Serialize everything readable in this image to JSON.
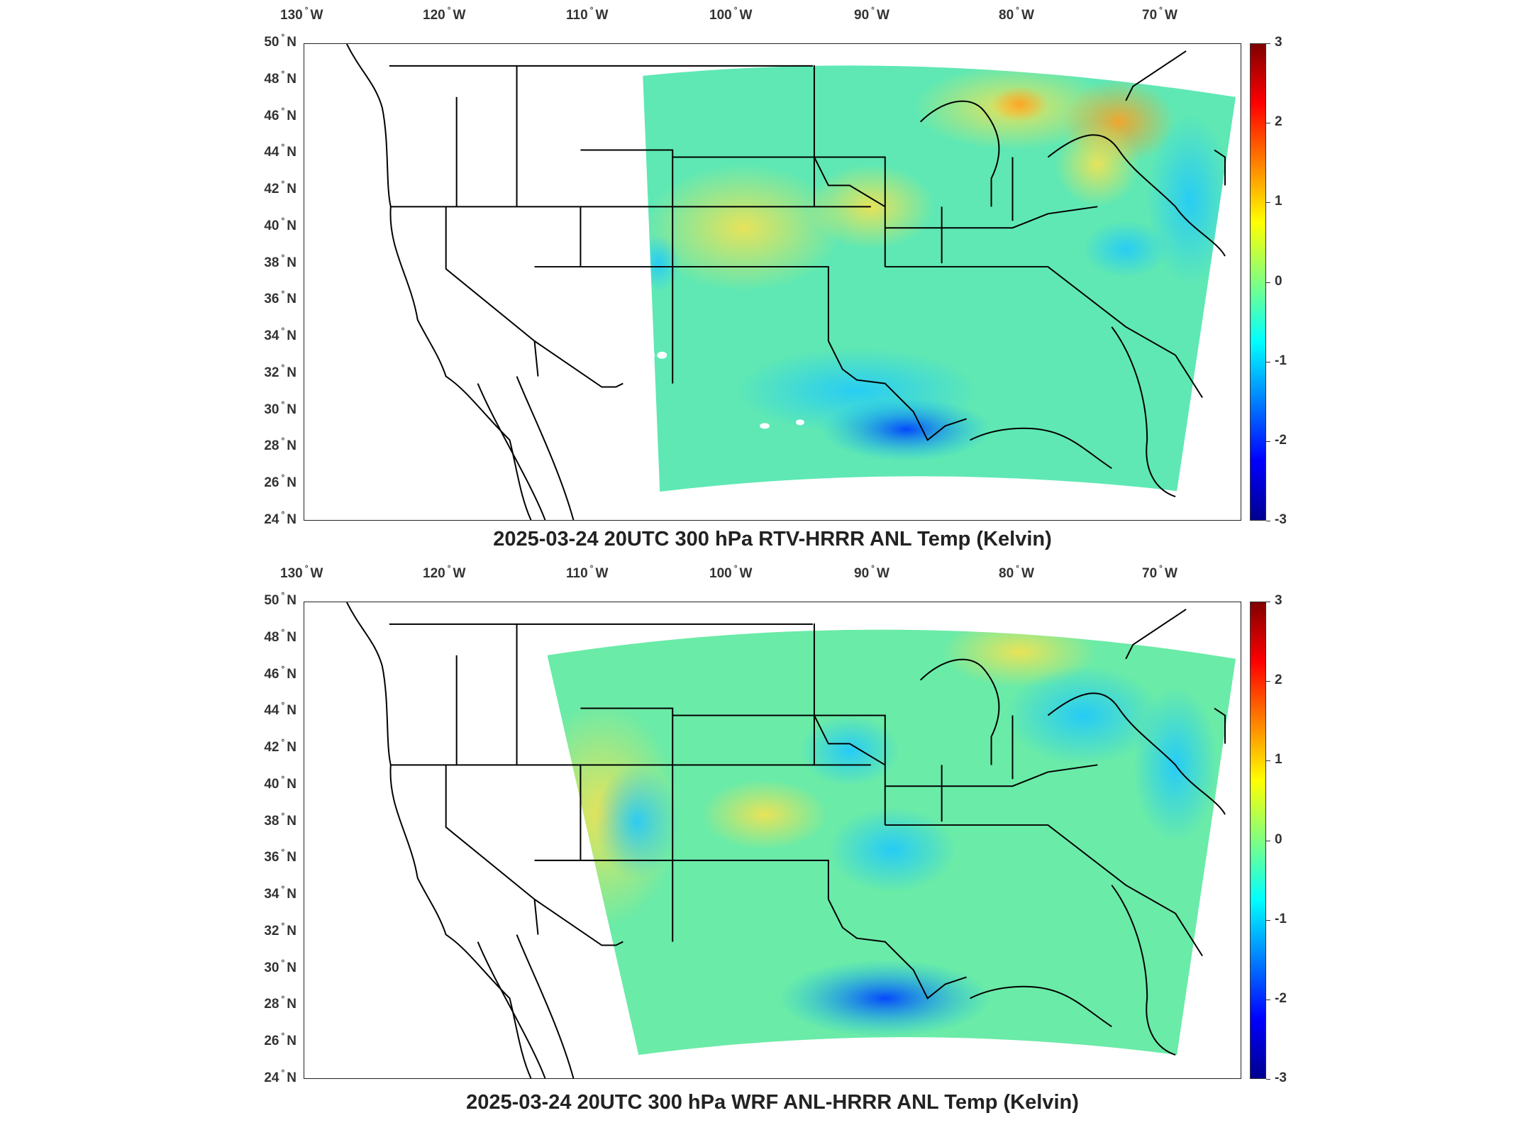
{
  "panels": [
    {
      "title": "2025-03-24 20UTC 300 hPa RTV-HRRR ANL Temp (Kelvin)",
      "colorbar_ticks": [
        "3",
        "2",
        "1",
        "0",
        "-1",
        "-2",
        "-3"
      ]
    },
    {
      "title": "2025-03-24 20UTC 300 hPa WRF ANL-HRRR ANL Temp (Kelvin)",
      "colorbar_ticks": [
        "3",
        "2",
        "1",
        "0",
        "-1",
        "-2",
        "-3"
      ]
    }
  ],
  "lon_labels": [
    {
      "num": "130",
      "dir": "W"
    },
    {
      "num": "120",
      "dir": "W"
    },
    {
      "num": "110",
      "dir": "W"
    },
    {
      "num": "100",
      "dir": "W"
    },
    {
      "num": "90",
      "dir": "W"
    },
    {
      "num": "80",
      "dir": "W"
    },
    {
      "num": "70",
      "dir": "W"
    }
  ],
  "lat_labels": [
    {
      "num": "50",
      "dir": "N"
    },
    {
      "num": "48",
      "dir": "N"
    },
    {
      "num": "46",
      "dir": "N"
    },
    {
      "num": "44",
      "dir": "N"
    },
    {
      "num": "42",
      "dir": "N"
    },
    {
      "num": "40",
      "dir": "N"
    },
    {
      "num": "38",
      "dir": "N"
    },
    {
      "num": "36",
      "dir": "N"
    },
    {
      "num": "34",
      "dir": "N"
    },
    {
      "num": "32",
      "dir": "N"
    },
    {
      "num": "30",
      "dir": "N"
    },
    {
      "num": "28",
      "dir": "N"
    },
    {
      "num": "26",
      "dir": "N"
    },
    {
      "num": "24",
      "dir": "N"
    }
  ],
  "colorbar": {
    "min": -3,
    "max": 3,
    "colormap": "jet"
  },
  "colors": {
    "outline": "#000000",
    "field_base": "#5fe8b4"
  }
}
